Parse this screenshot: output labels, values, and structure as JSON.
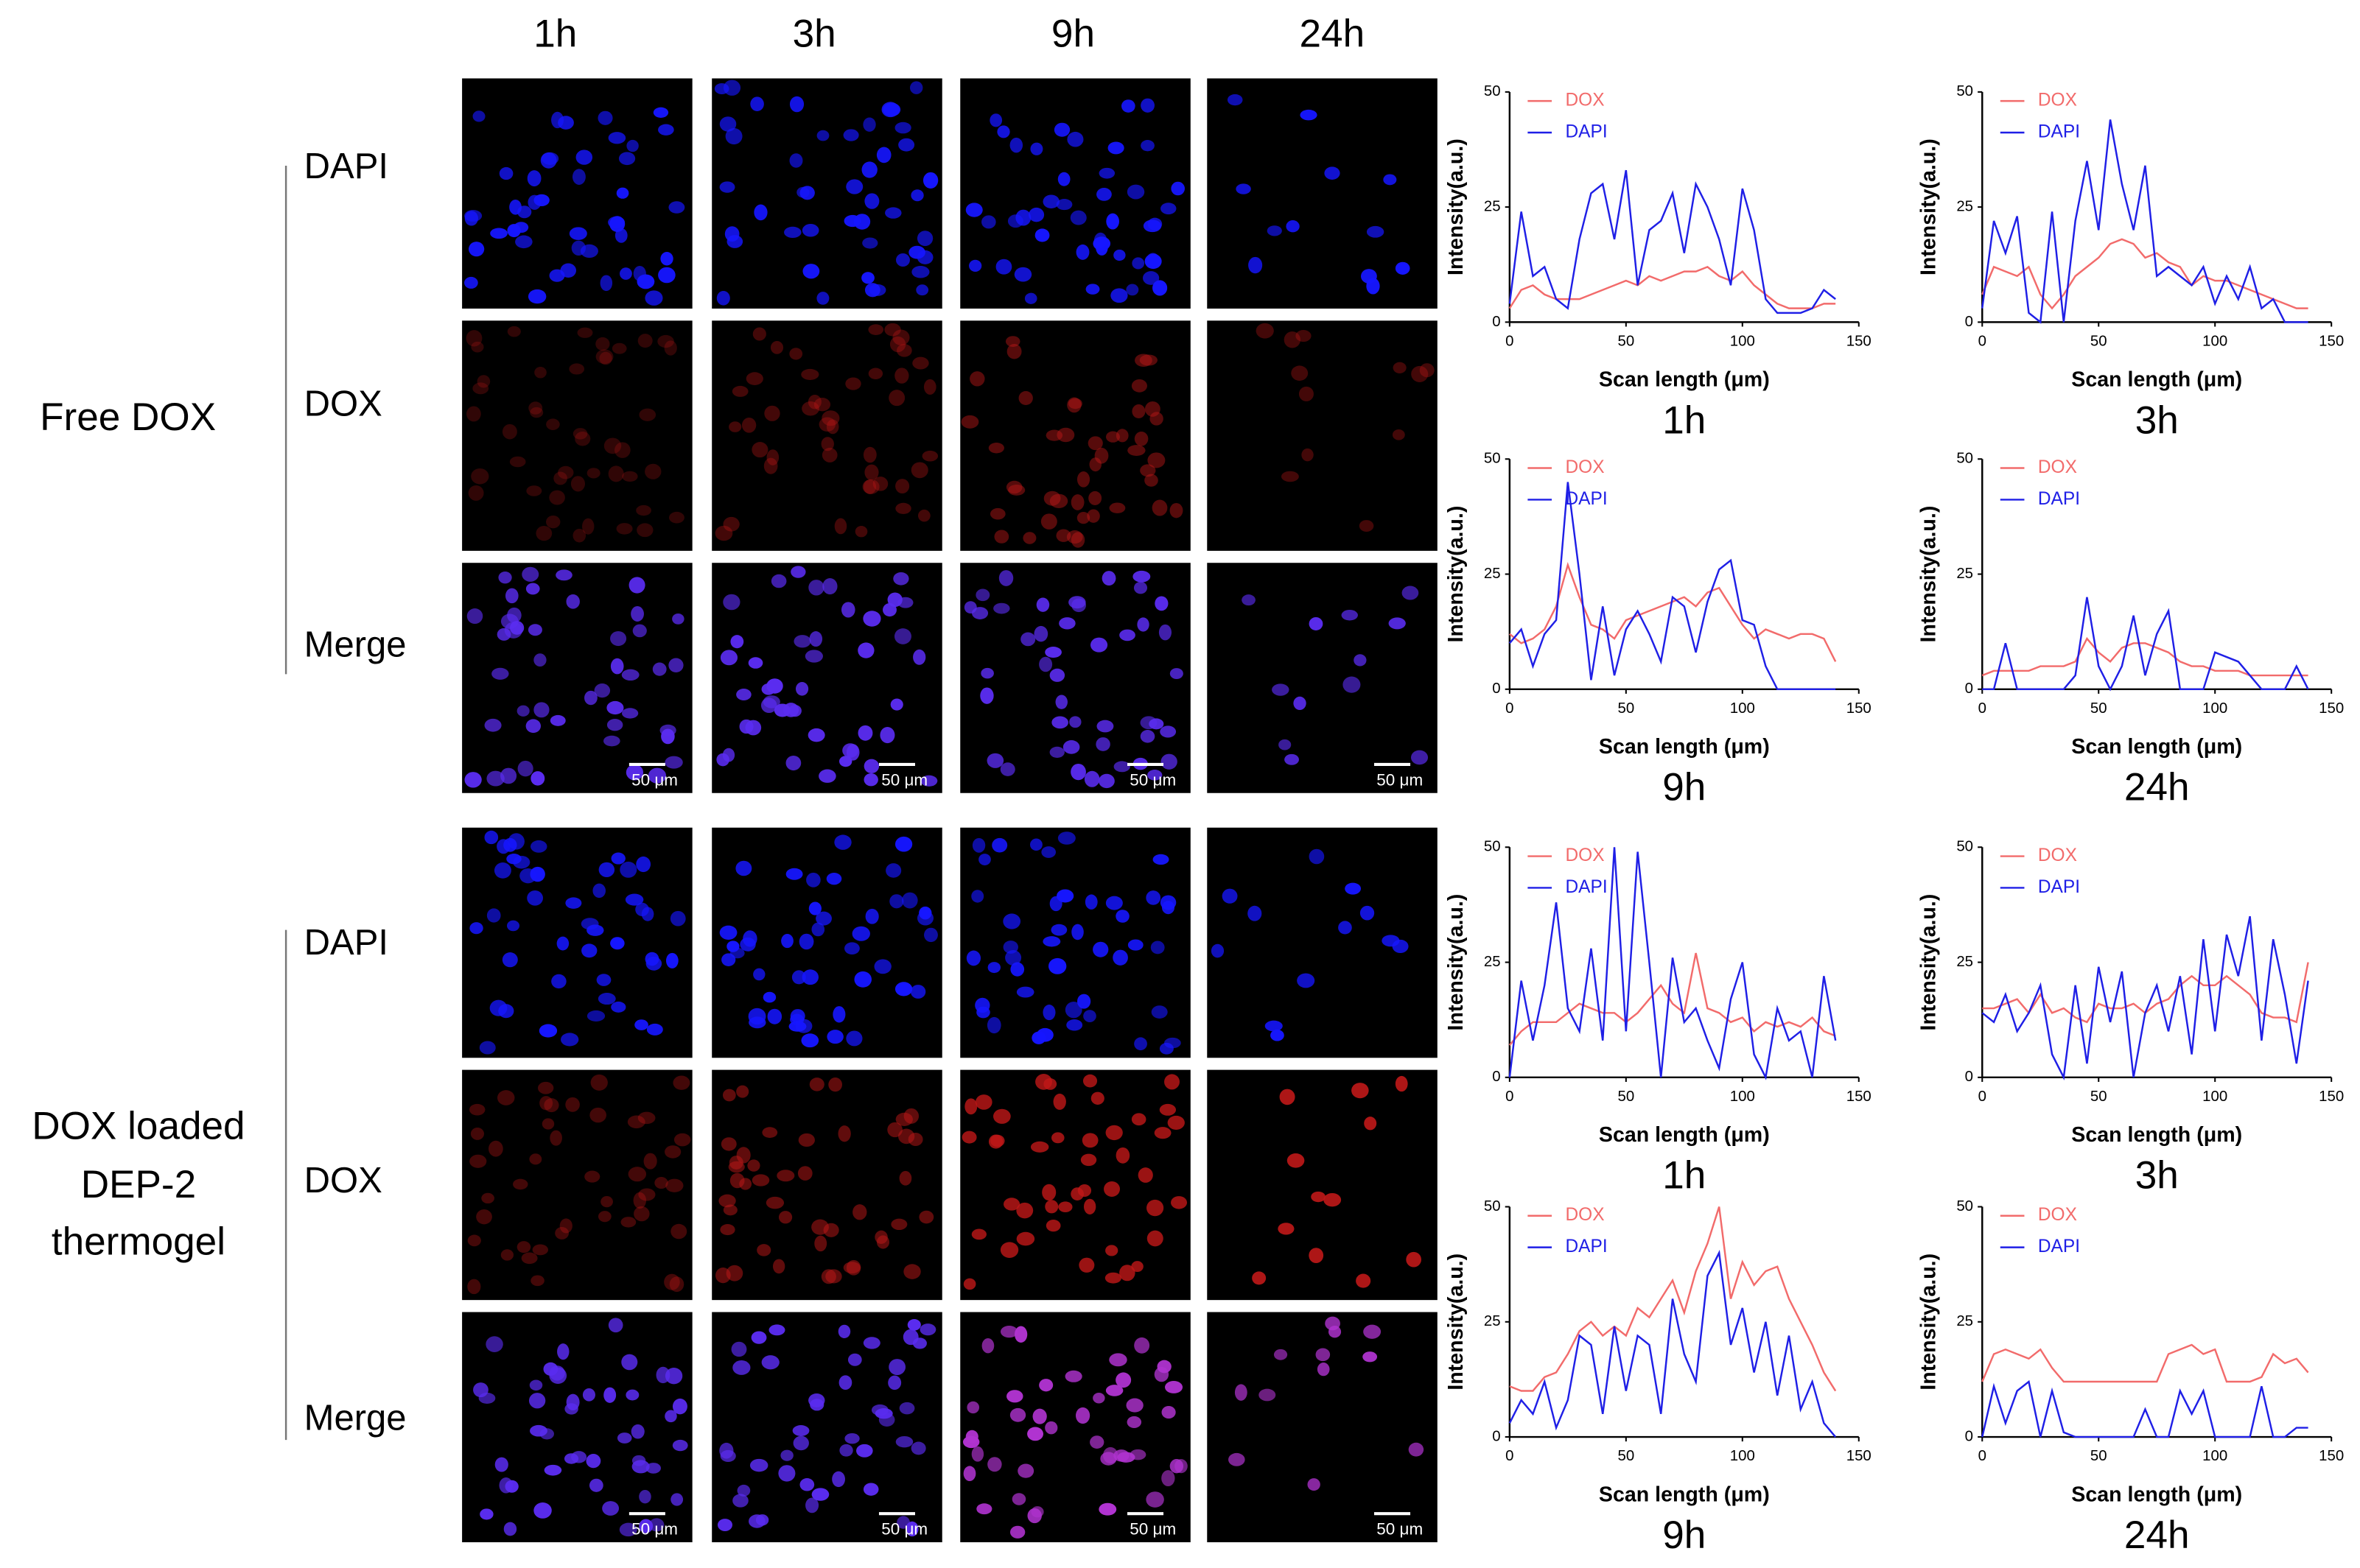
{
  "figure": {
    "columns": [
      "1h",
      "3h",
      "9h",
      "24h"
    ],
    "groups": [
      {
        "label": [
          "Free DOX"
        ],
        "rows": [
          "DAPI",
          "DOX",
          "Merge"
        ],
        "scale_bar": "50 μm"
      },
      {
        "label": [
          "DOX loaded",
          "DEP-2",
          "thermogel"
        ],
        "rows": [
          "DAPI",
          "DOX",
          "Merge"
        ],
        "scale_bar": "50 μm"
      }
    ]
  },
  "chart_data": [
    {
      "type": "line",
      "title": "1h",
      "x_label": "Scan length (μm)",
      "y_label": "Intensity(a.u.)",
      "xlim": [
        0,
        150
      ],
      "ylim": [
        0,
        50
      ],
      "xticks": [
        0,
        50,
        100,
        150
      ],
      "yticks": [
        0,
        25,
        50
      ],
      "x": [
        0,
        5,
        10,
        15,
        20,
        25,
        30,
        35,
        40,
        45,
        50,
        55,
        60,
        65,
        70,
        75,
        80,
        85,
        90,
        95,
        100,
        105,
        110,
        115,
        120,
        125,
        130,
        135,
        140
      ],
      "series": [
        {
          "name": "DOX",
          "color": "#f26b6b",
          "values": [
            3,
            7,
            8,
            6,
            5,
            5,
            5,
            6,
            7,
            8,
            9,
            8,
            10,
            9,
            10,
            11,
            11,
            12,
            10,
            9,
            11,
            8,
            6,
            4,
            3,
            3,
            3,
            4,
            4
          ]
        },
        {
          "name": "DAPI",
          "color": "#1f1fe6",
          "values": [
            4,
            24,
            10,
            12,
            5,
            3,
            18,
            28,
            30,
            18,
            33,
            8,
            20,
            22,
            28,
            15,
            30,
            25,
            18,
            8,
            29,
            20,
            5,
            2,
            2,
            2,
            3,
            7,
            5
          ]
        }
      ]
    },
    {
      "type": "line",
      "title": "3h",
      "x_label": "Scan length (μm)",
      "y_label": "Intensity(a.u.)",
      "xlim": [
        0,
        150
      ],
      "ylim": [
        0,
        50
      ],
      "xticks": [
        0,
        50,
        100,
        150
      ],
      "yticks": [
        0,
        25,
        50
      ],
      "x": [
        0,
        5,
        10,
        15,
        20,
        25,
        30,
        35,
        40,
        45,
        50,
        55,
        60,
        65,
        70,
        75,
        80,
        85,
        90,
        95,
        100,
        105,
        110,
        115,
        120,
        125,
        130,
        135,
        140
      ],
      "series": [
        {
          "name": "DOX",
          "color": "#f26b6b",
          "values": [
            6,
            12,
            11,
            10,
            12,
            6,
            3,
            6,
            10,
            12,
            14,
            17,
            18,
            17,
            14,
            15,
            13,
            12,
            8,
            10,
            9,
            9,
            8,
            7,
            6,
            5,
            4,
            3,
            3
          ]
        },
        {
          "name": "DAPI",
          "color": "#1f1fe6",
          "values": [
            3,
            22,
            15,
            23,
            2,
            0,
            24,
            0,
            22,
            35,
            20,
            44,
            30,
            20,
            34,
            10,
            12,
            10,
            8,
            12,
            4,
            10,
            5,
            12,
            3,
            5,
            0,
            0,
            0
          ]
        }
      ]
    },
    {
      "type": "line",
      "title": "9h",
      "x_label": "Scan length (μm)",
      "y_label": "Intensity(a.u.)",
      "xlim": [
        0,
        150
      ],
      "ylim": [
        0,
        50
      ],
      "xticks": [
        0,
        50,
        100,
        150
      ],
      "yticks": [
        0,
        25,
        50
      ],
      "x": [
        0,
        5,
        10,
        15,
        20,
        25,
        30,
        35,
        40,
        45,
        50,
        55,
        60,
        65,
        70,
        75,
        80,
        85,
        90,
        95,
        100,
        105,
        110,
        115,
        120,
        125,
        130,
        135,
        140
      ],
      "series": [
        {
          "name": "DOX",
          "color": "#f26b6b",
          "values": [
            12,
            10,
            11,
            13,
            18,
            27,
            20,
            14,
            13,
            11,
            15,
            16,
            17,
            18,
            19,
            20,
            18,
            21,
            22,
            18,
            14,
            11,
            13,
            12,
            11,
            12,
            12,
            11,
            6
          ]
        },
        {
          "name": "DAPI",
          "color": "#1f1fe6",
          "values": [
            10,
            13,
            5,
            12,
            15,
            45,
            25,
            2,
            18,
            3,
            13,
            17,
            12,
            6,
            20,
            18,
            8,
            19,
            26,
            28,
            15,
            14,
            5,
            0,
            0,
            0,
            0,
            0,
            0
          ]
        }
      ]
    },
    {
      "type": "line",
      "title": "24h",
      "x_label": "Scan length (μm)",
      "y_label": "Intensity(a.u.)",
      "xlim": [
        0,
        150
      ],
      "ylim": [
        0,
        50
      ],
      "xticks": [
        0,
        50,
        100,
        150
      ],
      "yticks": [
        0,
        25,
        50
      ],
      "x": [
        0,
        5,
        10,
        15,
        20,
        25,
        30,
        35,
        40,
        45,
        50,
        55,
        60,
        65,
        70,
        75,
        80,
        85,
        90,
        95,
        100,
        105,
        110,
        115,
        120,
        125,
        130,
        135,
        140
      ],
      "series": [
        {
          "name": "DOX",
          "color": "#f26b6b",
          "values": [
            3,
            4,
            4,
            4,
            4,
            5,
            5,
            5,
            6,
            11,
            8,
            6,
            9,
            10,
            10,
            9,
            8,
            6,
            5,
            5,
            4,
            4,
            4,
            3,
            3,
            3,
            3,
            3,
            3
          ]
        },
        {
          "name": "DAPI",
          "color": "#1f1fe6",
          "values": [
            0,
            0,
            10,
            0,
            0,
            0,
            0,
            0,
            3,
            20,
            5,
            0,
            5,
            16,
            3,
            12,
            17,
            0,
            0,
            0,
            8,
            7,
            6,
            3,
            0,
            0,
            0,
            5,
            0
          ]
        }
      ]
    },
    {
      "type": "line",
      "title": "1h",
      "x_label": "Scan length (μm)",
      "y_label": "Intensity(a.u.)",
      "xlim": [
        0,
        150
      ],
      "ylim": [
        0,
        50
      ],
      "xticks": [
        0,
        50,
        100,
        150
      ],
      "yticks": [
        0,
        25,
        50
      ],
      "x": [
        0,
        5,
        10,
        15,
        20,
        25,
        30,
        35,
        40,
        45,
        50,
        55,
        60,
        65,
        70,
        75,
        80,
        85,
        90,
        95,
        100,
        105,
        110,
        115,
        120,
        125,
        130,
        135,
        140
      ],
      "series": [
        {
          "name": "DOX",
          "color": "#f26b6b",
          "values": [
            7,
            10,
            12,
            12,
            12,
            14,
            16,
            15,
            14,
            14,
            12,
            14,
            17,
            20,
            16,
            14,
            27,
            15,
            14,
            12,
            13,
            10,
            12,
            11,
            12,
            11,
            13,
            10,
            9
          ]
        },
        {
          "name": "DAPI",
          "color": "#1f1fe6",
          "values": [
            0,
            21,
            8,
            20,
            38,
            15,
            10,
            28,
            8,
            50,
            10,
            49,
            25,
            0,
            26,
            12,
            15,
            8,
            2,
            17,
            25,
            5,
            0,
            15,
            8,
            10,
            0,
            22,
            8
          ]
        }
      ]
    },
    {
      "type": "line",
      "title": "3h",
      "x_label": "Scan length (μm)",
      "y_label": "Intensity(a.u.)",
      "xlim": [
        0,
        150
      ],
      "ylim": [
        0,
        50
      ],
      "xticks": [
        0,
        50,
        100,
        150
      ],
      "yticks": [
        0,
        25,
        50
      ],
      "x": [
        0,
        5,
        10,
        15,
        20,
        25,
        30,
        35,
        40,
        45,
        50,
        55,
        60,
        65,
        70,
        75,
        80,
        85,
        90,
        95,
        100,
        105,
        110,
        115,
        120,
        125,
        130,
        135,
        140
      ],
      "series": [
        {
          "name": "DOX",
          "color": "#f26b6b",
          "values": [
            15,
            15,
            16,
            17,
            14,
            18,
            14,
            15,
            13,
            12,
            16,
            15,
            15,
            16,
            14,
            16,
            17,
            20,
            22,
            20,
            20,
            22,
            20,
            18,
            14,
            13,
            13,
            12,
            25
          ]
        },
        {
          "name": "DAPI",
          "color": "#1f1fe6",
          "values": [
            14,
            12,
            18,
            10,
            14,
            20,
            5,
            0,
            20,
            3,
            24,
            12,
            23,
            0,
            14,
            20,
            10,
            22,
            5,
            30,
            10,
            31,
            22,
            35,
            8,
            30,
            18,
            3,
            21
          ]
        }
      ]
    },
    {
      "type": "line",
      "title": "9h",
      "x_label": "Scan length (μm)",
      "y_label": "Intensity(a.u.)",
      "xlim": [
        0,
        150
      ],
      "ylim": [
        0,
        50
      ],
      "xticks": [
        0,
        50,
        100,
        150
      ],
      "yticks": [
        0,
        25,
        50
      ],
      "x": [
        0,
        5,
        10,
        15,
        20,
        25,
        30,
        35,
        40,
        45,
        50,
        55,
        60,
        65,
        70,
        75,
        80,
        85,
        90,
        95,
        100,
        105,
        110,
        115,
        120,
        125,
        130,
        135,
        140
      ],
      "series": [
        {
          "name": "DOX",
          "color": "#f26b6b",
          "values": [
            11,
            10,
            10,
            13,
            14,
            18,
            23,
            25,
            22,
            24,
            22,
            28,
            26,
            30,
            34,
            27,
            36,
            42,
            50,
            30,
            38,
            33,
            36,
            37,
            30,
            25,
            20,
            14,
            10
          ]
        },
        {
          "name": "DAPI",
          "color": "#1f1fe6",
          "values": [
            3,
            8,
            5,
            12,
            2,
            8,
            22,
            20,
            5,
            24,
            10,
            22,
            20,
            5,
            30,
            18,
            12,
            35,
            40,
            20,
            28,
            14,
            25,
            9,
            22,
            6,
            12,
            3,
            0
          ]
        }
      ]
    },
    {
      "type": "line",
      "title": "24h",
      "x_label": "Scan length (μm)",
      "y_label": "Intensity(a.u.)",
      "xlim": [
        0,
        150
      ],
      "ylim": [
        0,
        50
      ],
      "xticks": [
        0,
        50,
        100,
        150
      ],
      "yticks": [
        0,
        25,
        50
      ],
      "x": [
        0,
        5,
        10,
        15,
        20,
        25,
        30,
        35,
        40,
        45,
        50,
        55,
        60,
        65,
        70,
        75,
        80,
        85,
        90,
        95,
        100,
        105,
        110,
        115,
        120,
        125,
        130,
        135,
        140
      ],
      "series": [
        {
          "name": "DOX",
          "color": "#f26b6b",
          "values": [
            12,
            18,
            19,
            18,
            17,
            19,
            15,
            12,
            12,
            12,
            12,
            12,
            12,
            12,
            12,
            12,
            18,
            19,
            20,
            18,
            19,
            12,
            12,
            12,
            13,
            18,
            16,
            17,
            14
          ]
        },
        {
          "name": "DAPI",
          "color": "#1f1fe6",
          "values": [
            0,
            11,
            3,
            10,
            12,
            0,
            10,
            1,
            0,
            0,
            0,
            0,
            0,
            0,
            6,
            0,
            0,
            10,
            5,
            10,
            0,
            0,
            0,
            0,
            11,
            0,
            0,
            2,
            2
          ]
        }
      ]
    }
  ]
}
